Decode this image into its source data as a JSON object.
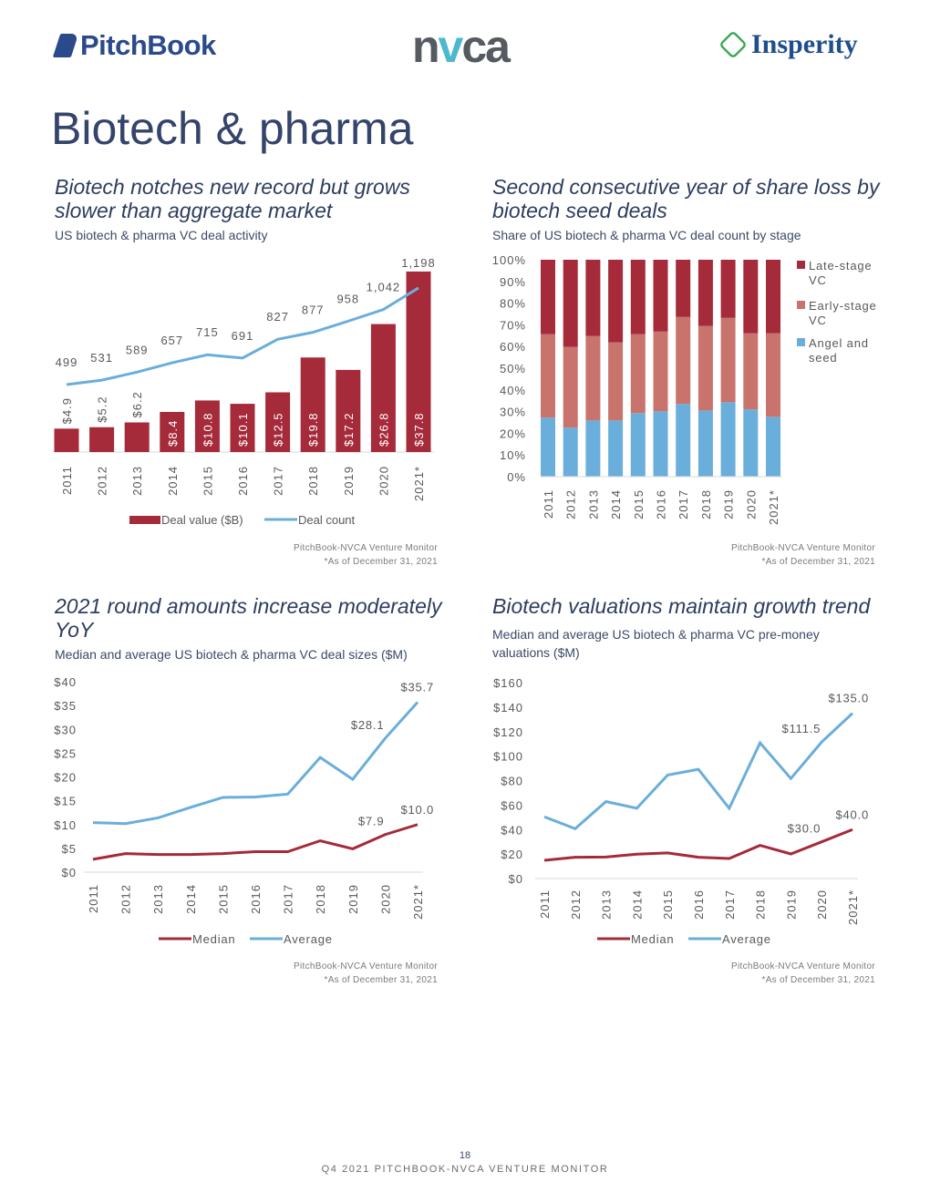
{
  "header": {
    "logos": {
      "pitchbook": "PitchBook",
      "nvca": "nvca",
      "insperity": "Insperity"
    }
  },
  "page_title": "Biotech & pharma",
  "colors": {
    "late": "#a52a3a",
    "early": "#c9736d",
    "angel": "#6aaedb",
    "median": "#a52a3a",
    "average": "#6aaedb",
    "bar": "#a52a3a",
    "line": "#6aaedb"
  },
  "chart_data": [
    {
      "type": "bar",
      "title": "Biotech notches new record but grows slower than aggregate market",
      "subtitle": "US biotech & pharma VC deal activity",
      "categories": [
        "2011",
        "2012",
        "2013",
        "2014",
        "2015",
        "2016",
        "2017",
        "2018",
        "2019",
        "2020",
        "2021*"
      ],
      "series": [
        {
          "name": "Deal value ($B)",
          "type": "bar",
          "values": [
            4.9,
            5.2,
            6.2,
            8.4,
            10.8,
            10.1,
            12.5,
            19.8,
            17.2,
            26.8,
            37.8
          ],
          "labels": [
            "$4.9",
            "$5.2",
            "$6.2",
            "$8.4",
            "$10.8",
            "$10.1",
            "$12.5",
            "$19.8",
            "$17.2",
            "$26.8",
            "$37.8"
          ]
        },
        {
          "name": "Deal count",
          "type": "line",
          "values": [
            499,
            531,
            589,
            657,
            715,
            691,
            827,
            877,
            958,
            1042,
            1198
          ],
          "labels": [
            "499",
            "531",
            "589",
            "657",
            "715",
            "691",
            "827",
            "877",
            "958",
            "1,042",
            "1,198"
          ]
        }
      ],
      "legend": "bottom",
      "source": "PitchBook-NVCA Venture Monitor",
      "note": "*As of December 31, 2021"
    },
    {
      "type": "bar",
      "stacked": "percent",
      "title": "Second consecutive year of share loss by biotech seed deals",
      "subtitle": "Share of US biotech & pharma VC deal count by stage",
      "categories": [
        "2011",
        "2012",
        "2013",
        "2014",
        "2015",
        "2016",
        "2017",
        "2018",
        "2019",
        "2020",
        "2021*"
      ],
      "yticks": [
        "0%",
        "10%",
        "20%",
        "30%",
        "40%",
        "50%",
        "60%",
        "70%",
        "80%",
        "90%",
        "100%"
      ],
      "ylim": [
        0,
        100
      ],
      "series": [
        {
          "name": "Angel and seed",
          "key": "angel",
          "values": [
            27.2,
            22.6,
            25.9,
            25.9,
            29.3,
            30.1,
            33.5,
            30.5,
            34.3,
            31.0,
            27.6
          ]
        },
        {
          "name": "Early-stage VC",
          "key": "early",
          "values": [
            38.5,
            37.2,
            39.0,
            36.0,
            36.4,
            36.8,
            40.1,
            39.0,
            38.9,
            35.1,
            38.5
          ]
        },
        {
          "name": "Late-stage VC",
          "key": "late",
          "values": [
            34.3,
            40.2,
            35.1,
            38.1,
            34.3,
            33.1,
            26.4,
            30.5,
            26.8,
            33.9,
            33.9
          ]
        }
      ],
      "legend_items": [
        {
          "key": "late",
          "lines": [
            "Late-stage",
            "VC"
          ]
        },
        {
          "key": "early",
          "lines": [
            "Early-stage",
            "VC"
          ]
        },
        {
          "key": "angel",
          "lines": [
            "Angel and",
            "seed"
          ]
        }
      ],
      "legend": "right",
      "source": "PitchBook-NVCA Venture Monitor",
      "note": "*As of  December 31, 2021"
    },
    {
      "type": "line",
      "title": "2021 round amounts increase moderately YoY",
      "subtitle": "Median and average US biotech & pharma VC deal sizes ($M)",
      "categories": [
        "2011",
        "2012",
        "2013",
        "2014",
        "2015",
        "2016",
        "2017",
        "2018",
        "2019",
        "2020",
        "2021*"
      ],
      "yticks": [
        "$0",
        "$5",
        "$10",
        "$15",
        "$20",
        "$25",
        "$30",
        "$35",
        "$40"
      ],
      "ylim": [
        0,
        40
      ],
      "series": [
        {
          "name": "Median",
          "key": "median",
          "values": [
            2.7,
            3.9,
            3.7,
            3.7,
            3.9,
            4.3,
            4.3,
            6.6,
            4.9,
            7.9,
            10.0
          ],
          "labels": [
            null,
            null,
            null,
            null,
            null,
            null,
            null,
            null,
            null,
            "$7.9",
            "$10.0"
          ]
        },
        {
          "name": "Average",
          "key": "average",
          "values": [
            10.4,
            10.2,
            11.4,
            13.6,
            15.7,
            15.8,
            16.4,
            24.1,
            19.5,
            28.1,
            35.7
          ],
          "labels": [
            null,
            null,
            null,
            null,
            null,
            null,
            null,
            null,
            null,
            "$28.1",
            "$35.7"
          ]
        }
      ],
      "legend": "bottom",
      "source": "PitchBook-NVCA Venture Monitor",
      "note": "*As of December 31, 2021"
    },
    {
      "type": "line",
      "title": "Biotech valuations maintain growth trend",
      "subtitle": "Median and average US biotech & pharma VC pre-money valuations ($M)",
      "categories": [
        "2011",
        "2012",
        "2013",
        "2014",
        "2015",
        "2016",
        "2017",
        "2018",
        "2019",
        "2020",
        "2021*"
      ],
      "yticks": [
        "$0",
        "$20",
        "$40",
        "$60",
        "$80",
        "$100",
        "$120",
        "$140",
        "$160"
      ],
      "ylim": [
        0,
        160
      ],
      "series": [
        {
          "name": "Median",
          "key": "median",
          "values": [
            14.9,
            17.4,
            17.6,
            19.9,
            20.9,
            17.4,
            16.4,
            27.1,
            20.1,
            30.0,
            40.0
          ],
          "labels": [
            null,
            null,
            null,
            null,
            null,
            null,
            null,
            null,
            null,
            "$30.0",
            "$40.0"
          ]
        },
        {
          "name": "Average",
          "key": "average",
          "values": [
            50.4,
            40.7,
            62.9,
            57.4,
            84.5,
            89.2,
            57.4,
            110.8,
            81.7,
            111.5,
            135.0
          ],
          "labels": [
            null,
            null,
            null,
            null,
            null,
            null,
            null,
            null,
            null,
            "$111.5",
            "$135.0"
          ]
        }
      ],
      "legend": "bottom",
      "source": "PitchBook-NVCA Venture Monitor",
      "note": "*As of December 31, 2021"
    }
  ],
  "footer": {
    "page_number": "18",
    "publication": "Q4 2021 PITCHBOOK-NVCA VENTURE MONITOR"
  }
}
